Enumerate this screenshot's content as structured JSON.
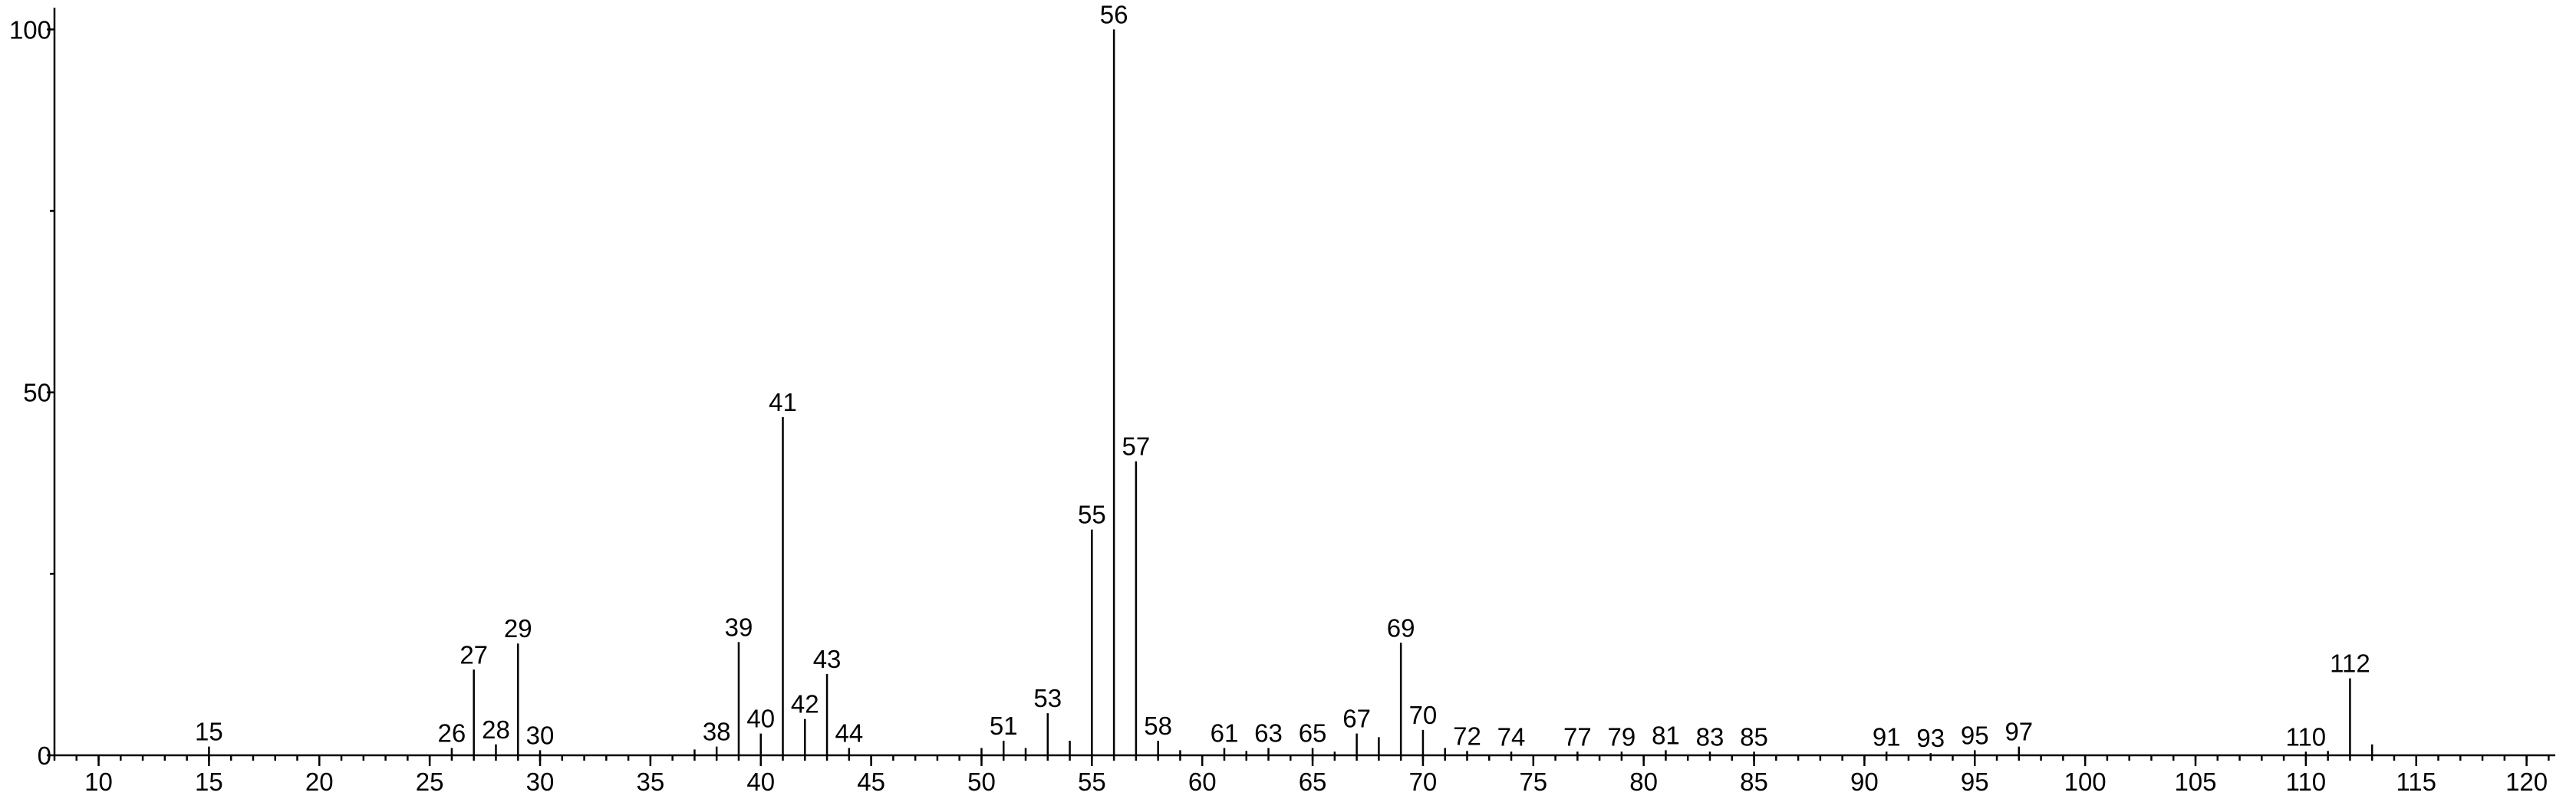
{
  "chart_data": {
    "type": "bar",
    "color": "#000000",
    "x": [
      15,
      26,
      27,
      28,
      29,
      30,
      37,
      38,
      39,
      40,
      41,
      42,
      43,
      44,
      50,
      51,
      52,
      53,
      54,
      55,
      56,
      57,
      58,
      59,
      61,
      62,
      63,
      65,
      66,
      67,
      68,
      69,
      70,
      71,
      72,
      74,
      77,
      79,
      81,
      83,
      85,
      91,
      93,
      95,
      97,
      110,
      111,
      112,
      113
    ],
    "values": [
      1.2,
      1,
      11.8,
      1.5,
      15.4,
      0.7,
      0.8,
      1.2,
      15.6,
      3,
      46.6,
      5,
      11.2,
      1,
      1,
      2,
      1,
      5.8,
      2,
      31.1,
      100,
      40.5,
      2,
      0.7,
      1,
      0.6,
      1,
      1,
      0.5,
      3,
      2.5,
      15.5,
      3.5,
      1,
      0.6,
      0.5,
      0.5,
      0.5,
      0.7,
      0.5,
      0.5,
      0.5,
      0.3,
      0.7,
      1.2,
      0.5,
      0.6,
      10.6,
      1.5
    ],
    "labels": [
      "15",
      "26",
      "27",
      "28",
      "29",
      "30",
      null,
      "38",
      "39",
      "40",
      "41",
      "42",
      "43",
      "44",
      null,
      "51",
      null,
      "53",
      null,
      "55",
      "56",
      "57",
      "58",
      null,
      "61",
      null,
      "63",
      "65",
      null,
      "67",
      null,
      "69",
      "70",
      null,
      "72",
      "74",
      "77",
      "79",
      "81",
      "83",
      "85",
      "91",
      "93",
      "95",
      "97",
      "110",
      null,
      "112",
      null
    ],
    "xlim": [
      8,
      121.3
    ],
    "xticks": [
      10,
      15,
      20,
      25,
      30,
      35,
      40,
      45,
      50,
      55,
      60,
      65,
      70,
      75,
      80,
      85,
      90,
      95,
      100,
      105,
      110,
      115,
      120
    ],
    "xticks_minor_step": 1,
    "ylim": [
      0,
      103
    ],
    "yticks": [
      0,
      50,
      100
    ],
    "yticks_minor": [
      25,
      75
    ]
  }
}
